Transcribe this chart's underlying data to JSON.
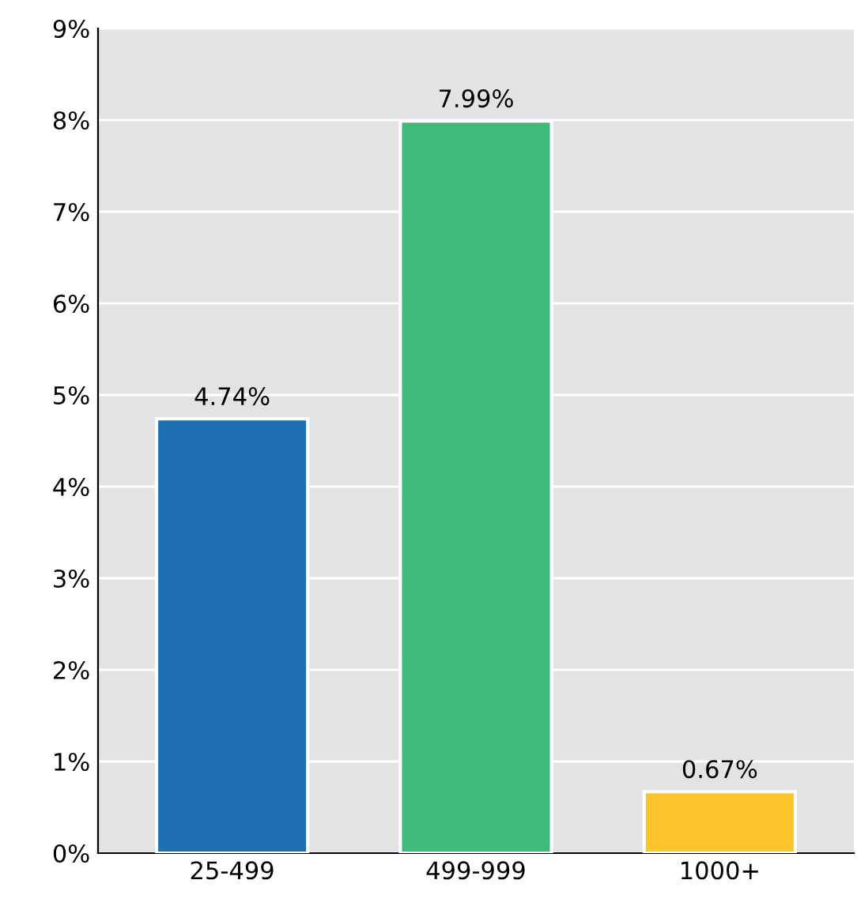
{
  "chart_data": {
    "type": "bar",
    "categories": [
      "25-499",
      "499-999",
      "1000+"
    ],
    "values": [
      4.74,
      7.99,
      0.67
    ],
    "colors": [
      "#1d6fb2",
      "#3fba7a",
      "#fcc52c"
    ],
    "value_labels": [
      "4.74%",
      "7.99%",
      "0.67%"
    ],
    "ylim": [
      0,
      9
    ],
    "yticks": [
      {
        "value": 0,
        "label": "0%"
      },
      {
        "value": 1,
        "label": "1%"
      },
      {
        "value": 2,
        "label": "2%"
      },
      {
        "value": 3,
        "label": "3%"
      },
      {
        "value": 4,
        "label": "4%"
      },
      {
        "value": 5,
        "label": "5%"
      },
      {
        "value": 6,
        "label": "6%"
      },
      {
        "value": 7,
        "label": "7%"
      },
      {
        "value": 8,
        "label": "8%"
      },
      {
        "value": 9,
        "label": "9%"
      }
    ],
    "grid": "y"
  }
}
